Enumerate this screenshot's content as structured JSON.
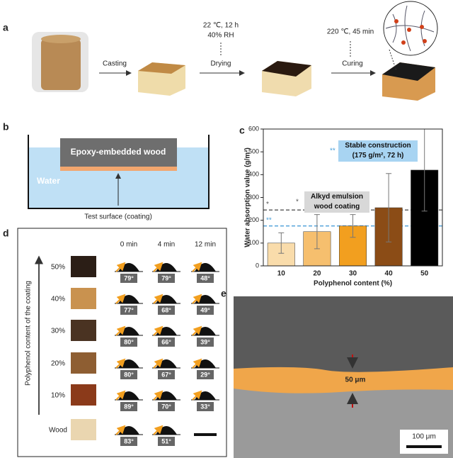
{
  "panel_a": {
    "label": "a",
    "steps": [
      {
        "label": "Casting"
      },
      {
        "label": "Drying",
        "conditions": [
          "22 ℃, 12 h",
          "40% RH"
        ]
      },
      {
        "label": "Curing",
        "conditions": [
          "220 ℃, 45 min"
        ]
      }
    ]
  },
  "panel_b": {
    "label": "b",
    "box": "Epoxy-embedded wood",
    "liquid": "Water",
    "arrow_label": "Test surface (coating)"
  },
  "chart_data": {
    "label": "c",
    "type": "bar",
    "categories": [
      "10",
      "20",
      "30",
      "40",
      "50"
    ],
    "values": [
      100,
      150,
      175,
      255,
      420
    ],
    "errors": [
      45,
      75,
      50,
      150,
      180
    ],
    "colors": [
      "#f9dcab",
      "#f6bf6e",
      "#f29f1f",
      "#8b4c16",
      "#000000"
    ],
    "xlabel": "Polyphenol content (%)",
    "ylabel": "Water absorption value (g/m²)",
    "ylim": [
      0,
      600
    ],
    "yticks": [
      0,
      100,
      200,
      300,
      400,
      500,
      600
    ],
    "reference_lines": [
      {
        "value": 245,
        "color": "#555555",
        "marker": "*",
        "label": "Alkyd emulsion wood coating"
      },
      {
        "value": 175,
        "color": "#4a9fd8",
        "marker": "**",
        "label": "Stable construction (175 g/m², 72 h)"
      }
    ]
  },
  "panel_d": {
    "label": "d",
    "axis_label": "Polyphenol content of the coating",
    "columns": [
      "0 min",
      "4 min",
      "12 min"
    ],
    "rows": [
      {
        "label": "50%",
        "angles": [
          "79°",
          "79°",
          "48°"
        ]
      },
      {
        "label": "40%",
        "angles": [
          "77°",
          "68°",
          "49°"
        ]
      },
      {
        "label": "30%",
        "angles": [
          "80°",
          "66°",
          "39°"
        ]
      },
      {
        "label": "20%",
        "angles": [
          "80°",
          "67°",
          "29°"
        ]
      },
      {
        "label": "10%",
        "angles": [
          "89°",
          "70°",
          "33°"
        ]
      },
      {
        "label": "Wood",
        "angles": [
          "83°",
          "51°",
          null
        ]
      }
    ]
  },
  "panel_e": {
    "label": "e",
    "thickness": "50 μm",
    "scale_bar": "100 μm"
  }
}
